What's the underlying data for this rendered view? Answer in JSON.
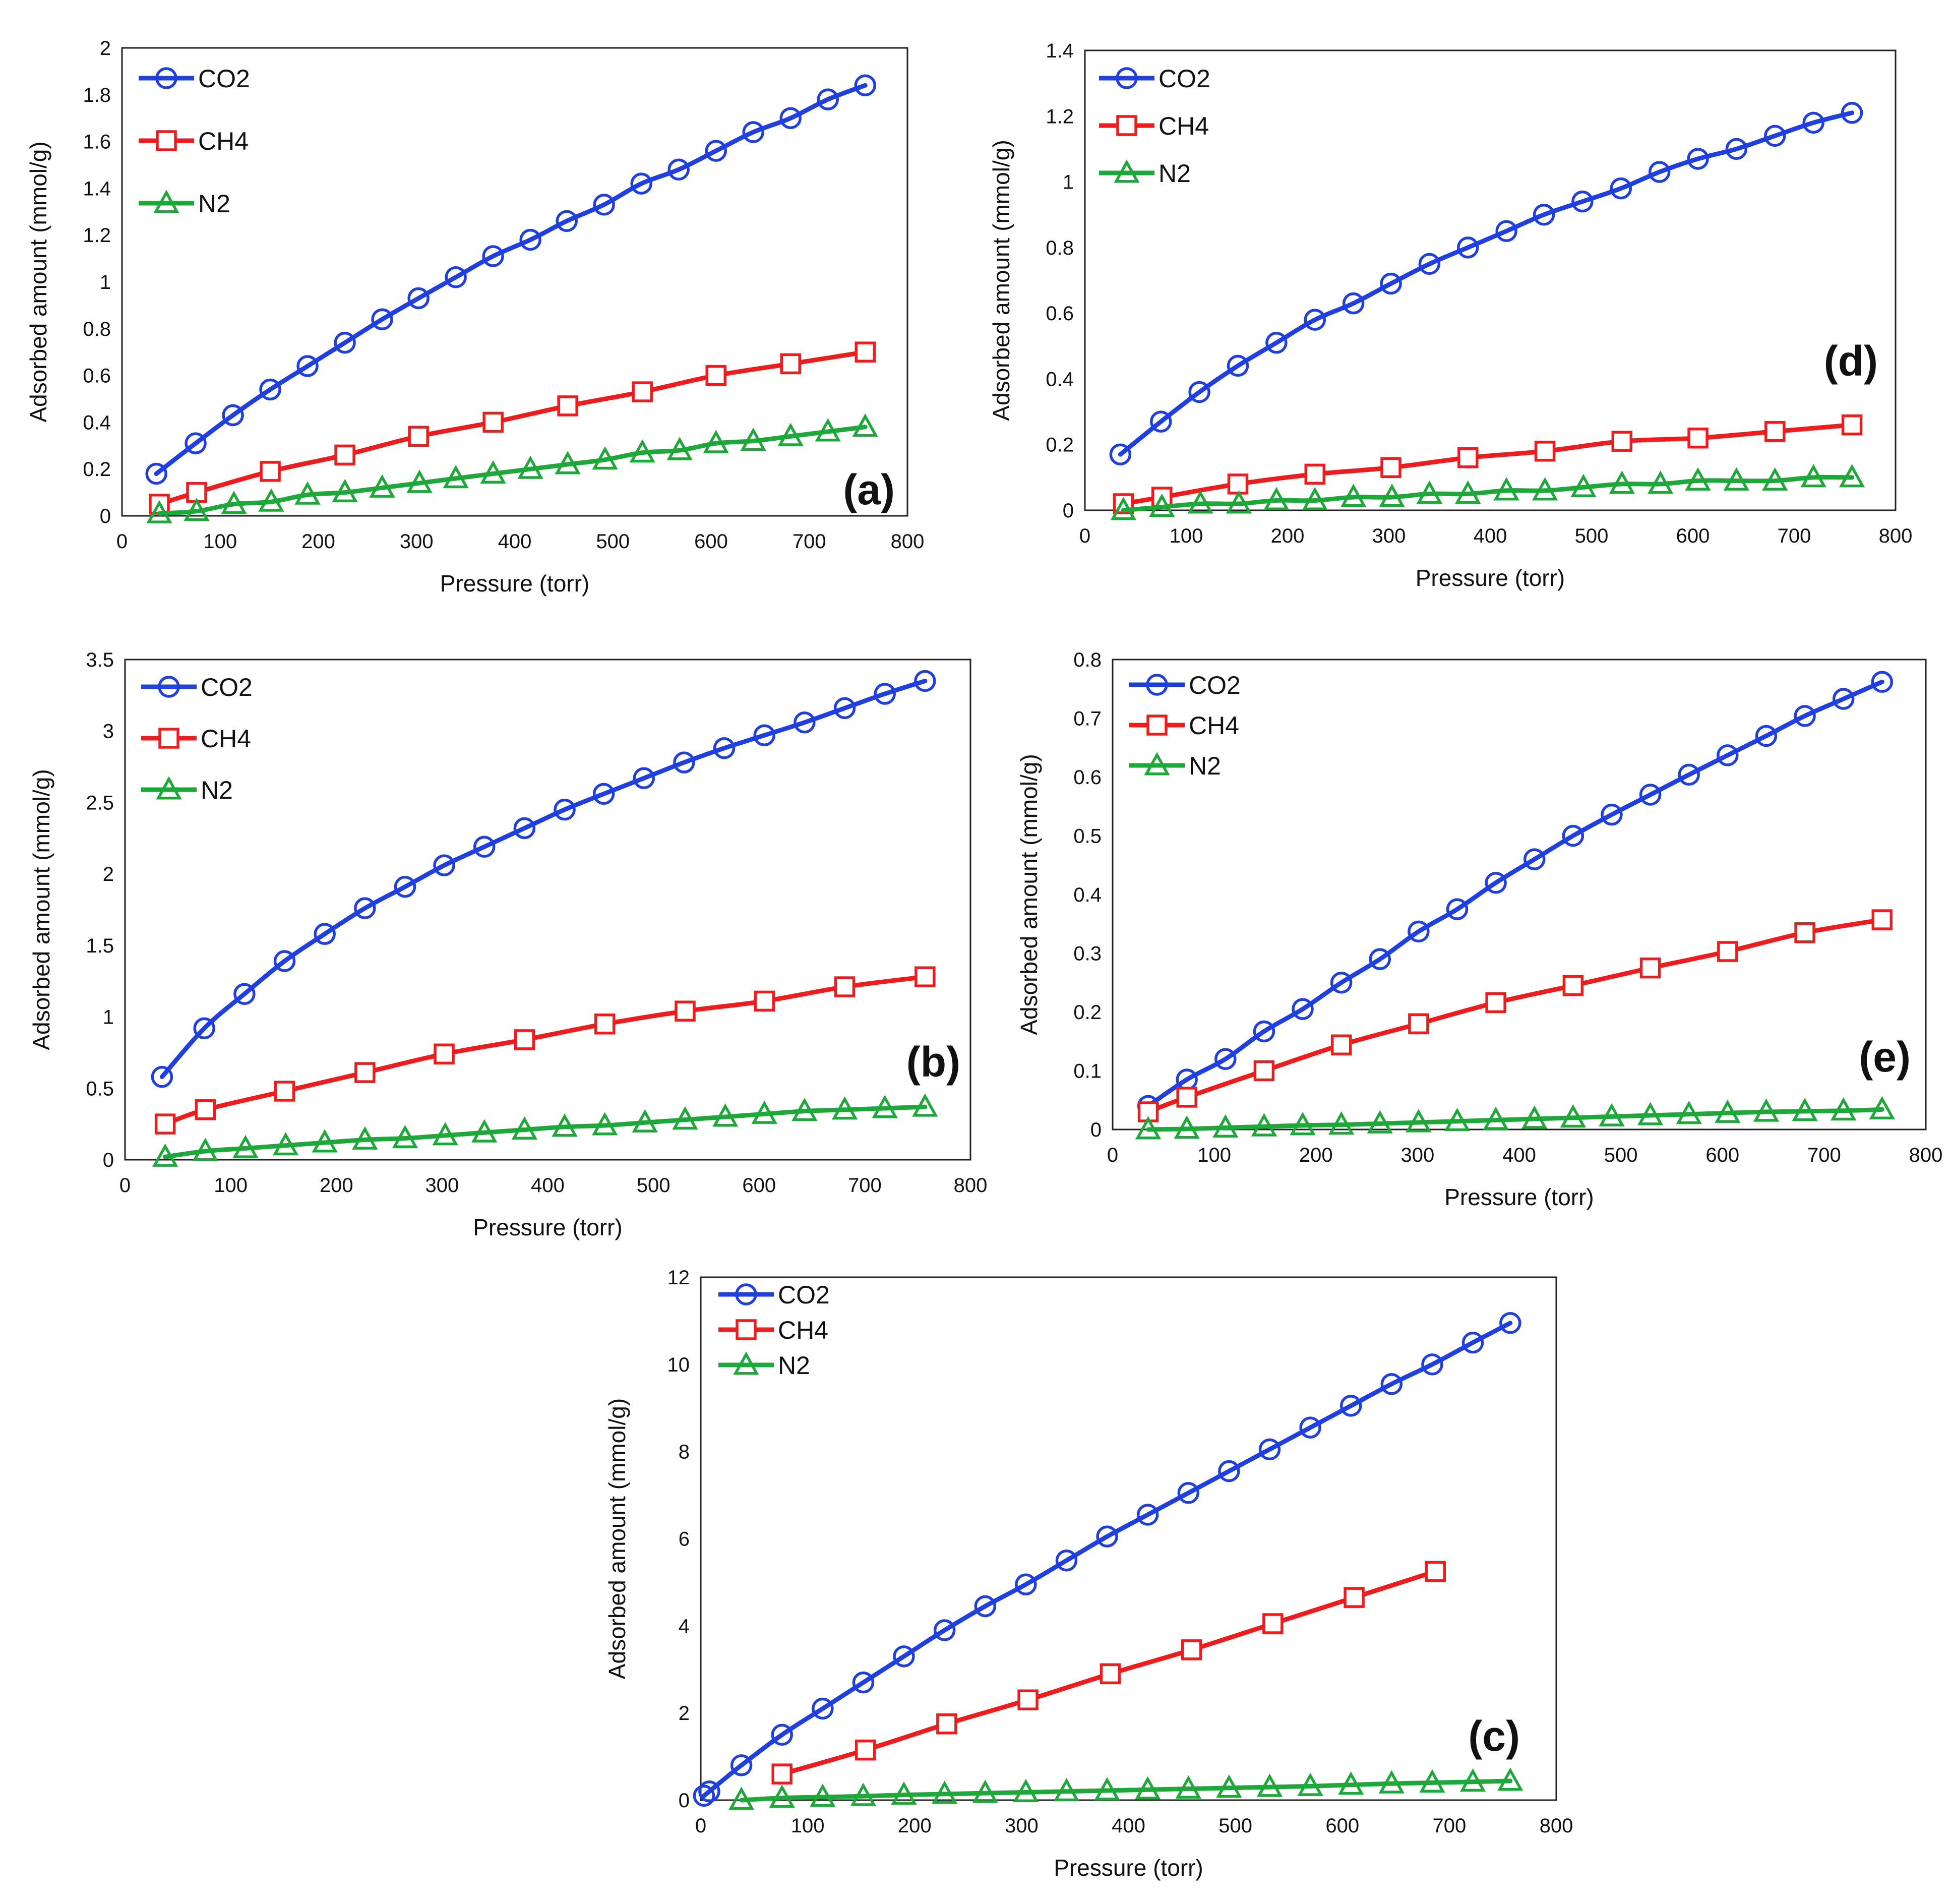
{
  "figure": {
    "series_styles": {
      "CO2": {
        "color": "#1f3fe0",
        "marker": "circle"
      },
      "CH4": {
        "color": "#ee1c1c",
        "marker": "square"
      },
      "N2": {
        "color": "#1fa83a",
        "marker": "triangle"
      }
    }
  },
  "chart_data": [
    {
      "id": "a",
      "type": "line",
      "panel_label": "(a)",
      "xlabel": "Pressure (torr)",
      "ylabel": "Adsorbed amount (mmol/g)",
      "xlim": [
        0,
        800
      ],
      "ylim": [
        0,
        2
      ],
      "xticks": [
        0,
        100,
        200,
        300,
        400,
        500,
        600,
        700,
        800
      ],
      "yticks": [
        0,
        0.2,
        0.4,
        0.6,
        0.8,
        1,
        1.2,
        1.4,
        1.6,
        1.8,
        2
      ],
      "series": [
        {
          "name": "CO2",
          "x": [
            35,
            75,
            113,
            151,
            189,
            227,
            265,
            302,
            340,
            378,
            416,
            453,
            491,
            529,
            567,
            605,
            643,
            681,
            719,
            757
          ],
          "y": [
            0.18,
            0.31,
            0.43,
            0.54,
            0.64,
            0.74,
            0.84,
            0.93,
            1.02,
            1.11,
            1.18,
            1.26,
            1.33,
            1.42,
            1.48,
            1.56,
            1.64,
            1.7,
            1.78,
            1.84
          ]
        },
        {
          "name": "CH4",
          "x": [
            38,
            76,
            151,
            227,
            302,
            378,
            454,
            530,
            605,
            681,
            757
          ],
          "y": [
            0.05,
            0.1,
            0.19,
            0.26,
            0.34,
            0.4,
            0.47,
            0.53,
            0.6,
            0.65,
            0.7
          ]
        },
        {
          "name": "N2",
          "x": [
            38,
            76,
            114,
            152,
            189,
            227,
            265,
            303,
            340,
            378,
            416,
            454,
            492,
            530,
            568,
            605,
            643,
            681,
            719,
            757
          ],
          "y": [
            0.01,
            0.02,
            0.05,
            0.06,
            0.09,
            0.1,
            0.12,
            0.14,
            0.16,
            0.18,
            0.2,
            0.22,
            0.24,
            0.27,
            0.28,
            0.31,
            0.32,
            0.34,
            0.36,
            0.38
          ]
        }
      ]
    },
    {
      "id": "d",
      "type": "line",
      "panel_label": "(d)",
      "xlabel": "Pressure (torr)",
      "ylabel": "Adsorbed amount (mmol/g)",
      "xlim": [
        0,
        800
      ],
      "ylim": [
        0,
        1.4
      ],
      "xticks": [
        0,
        100,
        200,
        300,
        400,
        500,
        600,
        700,
        800
      ],
      "yticks": [
        0,
        0.2,
        0.4,
        0.6,
        0.8,
        1,
        1.2,
        1.4
      ],
      "series": [
        {
          "name": "CO2",
          "x": [
            35,
            75,
            113,
            151,
            189,
            227,
            265,
            302,
            340,
            378,
            416,
            453,
            491,
            529,
            567,
            605,
            643,
            681,
            719,
            757
          ],
          "y": [
            0.17,
            0.27,
            0.36,
            0.44,
            0.51,
            0.58,
            0.63,
            0.69,
            0.75,
            0.8,
            0.85,
            0.9,
            0.94,
            0.98,
            1.03,
            1.07,
            1.1,
            1.14,
            1.18,
            1.21
          ]
        },
        {
          "name": "CH4",
          "x": [
            38,
            76,
            151,
            227,
            302,
            378,
            454,
            530,
            605,
            681,
            757
          ],
          "y": [
            0.02,
            0.04,
            0.08,
            0.11,
            0.13,
            0.16,
            0.18,
            0.21,
            0.22,
            0.24,
            0.26
          ]
        },
        {
          "name": "N2",
          "x": [
            38,
            76,
            114,
            152,
            189,
            227,
            265,
            303,
            340,
            378,
            416,
            454,
            492,
            530,
            568,
            605,
            643,
            681,
            719,
            757
          ],
          "y": [
            0.0,
            0.01,
            0.02,
            0.02,
            0.03,
            0.03,
            0.04,
            0.04,
            0.05,
            0.05,
            0.06,
            0.06,
            0.07,
            0.08,
            0.08,
            0.09,
            0.09,
            0.09,
            0.1,
            0.1
          ]
        }
      ]
    },
    {
      "id": "b",
      "type": "line",
      "panel_label": "(b)",
      "xlabel": "Pressure (torr)",
      "ylabel": "Adsorbed amount (mmol/g)",
      "xlim": [
        0,
        800
      ],
      "ylim": [
        0,
        3.5
      ],
      "xticks": [
        0,
        100,
        200,
        300,
        400,
        500,
        600,
        700,
        800
      ],
      "yticks": [
        0,
        0.5,
        1,
        1.5,
        2,
        2.5,
        3,
        3.5
      ],
      "series": [
        {
          "name": "CO2",
          "x": [
            35,
            75,
            113,
            151,
            189,
            227,
            265,
            302,
            340,
            378,
            416,
            453,
            491,
            529,
            567,
            605,
            643,
            681,
            719,
            757
          ],
          "y": [
            0.58,
            0.92,
            1.16,
            1.39,
            1.58,
            1.76,
            1.91,
            2.06,
            2.19,
            2.32,
            2.45,
            2.56,
            2.67,
            2.78,
            2.88,
            2.97,
            3.06,
            3.16,
            3.26,
            3.35
          ]
        },
        {
          "name": "CH4",
          "x": [
            38,
            76,
            151,
            227,
            302,
            378,
            454,
            530,
            605,
            681,
            757
          ],
          "y": [
            0.25,
            0.35,
            0.48,
            0.61,
            0.74,
            0.84,
            0.95,
            1.04,
            1.11,
            1.21,
            1.28
          ]
        },
        {
          "name": "N2",
          "x": [
            38,
            76,
            114,
            152,
            189,
            227,
            265,
            303,
            340,
            378,
            416,
            454,
            492,
            530,
            568,
            605,
            643,
            681,
            719,
            757
          ],
          "y": [
            0.02,
            0.06,
            0.08,
            0.1,
            0.12,
            0.14,
            0.15,
            0.17,
            0.19,
            0.21,
            0.23,
            0.24,
            0.26,
            0.28,
            0.3,
            0.32,
            0.34,
            0.35,
            0.36,
            0.37
          ]
        }
      ]
    },
    {
      "id": "e",
      "type": "line",
      "panel_label": "(e)",
      "xlabel": "Pressure (torr)",
      "ylabel": "Adsorbed amount (mmol/g)",
      "xlim": [
        0,
        800
      ],
      "ylim": [
        0,
        0.8
      ],
      "xticks": [
        0,
        100,
        200,
        300,
        400,
        500,
        600,
        700,
        800
      ],
      "yticks": [
        0,
        0.1,
        0.2,
        0.3,
        0.4,
        0.5,
        0.6,
        0.7,
        0.8
      ],
      "series": [
        {
          "name": "CO2",
          "x": [
            35,
            73,
            111,
            149,
            187,
            225,
            263,
            301,
            339,
            377,
            415,
            453,
            491,
            529,
            567,
            605,
            643,
            681,
            719,
            757
          ],
          "y": [
            0.04,
            0.085,
            0.12,
            0.167,
            0.205,
            0.25,
            0.29,
            0.337,
            0.375,
            0.42,
            0.46,
            0.5,
            0.536,
            0.57,
            0.604,
            0.637,
            0.67,
            0.704,
            0.733,
            0.762
          ]
        },
        {
          "name": "CH4",
          "x": [
            35,
            73,
            149,
            225,
            301,
            377,
            453,
            529,
            605,
            681,
            757
          ],
          "y": [
            0.03,
            0.055,
            0.1,
            0.144,
            0.18,
            0.216,
            0.245,
            0.275,
            0.303,
            0.335,
            0.357
          ]
        },
        {
          "name": "N2",
          "x": [
            35,
            73,
            111,
            149,
            187,
            225,
            263,
            301,
            339,
            377,
            415,
            453,
            491,
            529,
            567,
            605,
            643,
            681,
            719,
            757
          ],
          "y": [
            0.0,
            0.001,
            0.003,
            0.005,
            0.007,
            0.008,
            0.01,
            0.012,
            0.014,
            0.016,
            0.018,
            0.02,
            0.022,
            0.024,
            0.026,
            0.028,
            0.03,
            0.031,
            0.032,
            0.034
          ]
        }
      ]
    },
    {
      "id": "c",
      "type": "line",
      "panel_label": "(c)",
      "xlabel": "Pressure (torr)",
      "ylabel": "Adsorbed amount (mmol/g)",
      "xlim": [
        0,
        800
      ],
      "ylim": [
        0,
        12
      ],
      "xticks": [
        0,
        100,
        200,
        300,
        400,
        500,
        600,
        700,
        800
      ],
      "yticks": [
        0,
        2,
        4,
        6,
        8,
        10,
        12
      ],
      "series": [
        {
          "name": "CO2",
          "x": [
            3,
            8,
            38,
            76,
            114,
            152,
            190,
            228,
            266,
            304,
            342,
            380,
            418,
            456,
            494,
            532,
            570,
            608,
            646,
            684,
            722,
            757
          ],
          "y": [
            0.1,
            0.2,
            0.8,
            1.5,
            2.1,
            2.7,
            3.3,
            3.9,
            4.45,
            4.95,
            5.5,
            6.05,
            6.55,
            7.05,
            7.55,
            8.05,
            8.55,
            9.05,
            9.55,
            10.0,
            10.5,
            10.95
          ]
        },
        {
          "name": "CH4",
          "x": [
            76,
            154,
            230,
            306,
            383,
            459,
            535,
            611,
            687
          ],
          "y": [
            0.6,
            1.15,
            1.75,
            2.3,
            2.9,
            3.45,
            4.05,
            4.65,
            5.25
          ]
        },
        {
          "name": "N2",
          "x": [
            38,
            76,
            114,
            152,
            190,
            228,
            266,
            304,
            342,
            380,
            418,
            456,
            494,
            532,
            570,
            608,
            646,
            684,
            722,
            757
          ],
          "y": [
            0.0,
            0.05,
            0.07,
            0.09,
            0.12,
            0.14,
            0.16,
            0.18,
            0.2,
            0.22,
            0.24,
            0.26,
            0.28,
            0.3,
            0.32,
            0.35,
            0.38,
            0.4,
            0.42,
            0.44
          ]
        }
      ]
    }
  ]
}
